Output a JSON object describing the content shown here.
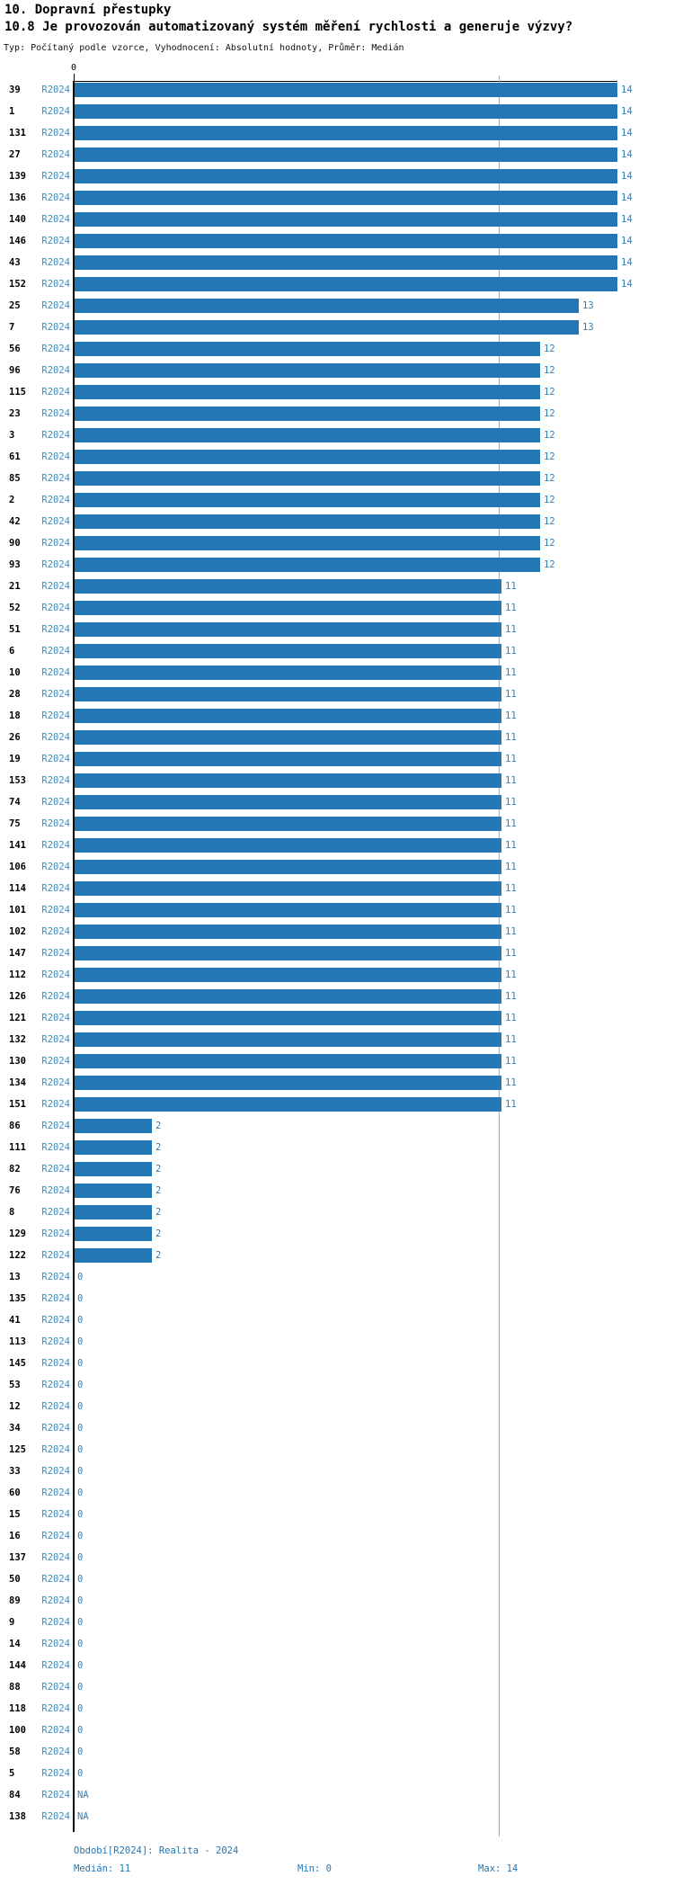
{
  "header": {
    "title": "10. Dopravní přestupky",
    "subtitle": "10.8 Je provozován automatizovaný systém měření rychlosti a generuje výzvy?",
    "meta": "Typ: Počítaný podle vzorce, Vyhodnocení: Absolutní hodnoty, Průměr: Medián"
  },
  "chart_data": {
    "type": "bar",
    "orientation": "horizontal",
    "title": "10.8 Je provozován automatizovaný systém měření rychlosti a generuje výzvy?",
    "series_label": "R2024",
    "axis_tick": "0",
    "xlim": [
      0,
      14
    ],
    "grid": false,
    "median_reference_line": 11,
    "stats": {
      "median": 11,
      "min": 0,
      "max": 14
    },
    "colors": {
      "bar": "#2377b4",
      "series_label": "#3a8bc2",
      "value_label": "#2e7fb8",
      "median_line": "#7fb2d8",
      "footer_text": "#2377b4"
    },
    "rows": [
      {
        "id": "39",
        "value": 14
      },
      {
        "id": "1",
        "value": 14
      },
      {
        "id": "131",
        "value": 14
      },
      {
        "id": "27",
        "value": 14
      },
      {
        "id": "139",
        "value": 14
      },
      {
        "id": "136",
        "value": 14
      },
      {
        "id": "140",
        "value": 14
      },
      {
        "id": "146",
        "value": 14
      },
      {
        "id": "43",
        "value": 14
      },
      {
        "id": "152",
        "value": 14
      },
      {
        "id": "25",
        "value": 13
      },
      {
        "id": "7",
        "value": 13
      },
      {
        "id": "56",
        "value": 12
      },
      {
        "id": "96",
        "value": 12
      },
      {
        "id": "115",
        "value": 12
      },
      {
        "id": "23",
        "value": 12
      },
      {
        "id": "3",
        "value": 12
      },
      {
        "id": "61",
        "value": 12
      },
      {
        "id": "85",
        "value": 12
      },
      {
        "id": "2",
        "value": 12
      },
      {
        "id": "42",
        "value": 12
      },
      {
        "id": "90",
        "value": 12
      },
      {
        "id": "93",
        "value": 12
      },
      {
        "id": "21",
        "value": 11
      },
      {
        "id": "52",
        "value": 11
      },
      {
        "id": "51",
        "value": 11
      },
      {
        "id": "6",
        "value": 11
      },
      {
        "id": "10",
        "value": 11
      },
      {
        "id": "28",
        "value": 11
      },
      {
        "id": "18",
        "value": 11
      },
      {
        "id": "26",
        "value": 11
      },
      {
        "id": "19",
        "value": 11
      },
      {
        "id": "153",
        "value": 11
      },
      {
        "id": "74",
        "value": 11
      },
      {
        "id": "75",
        "value": 11
      },
      {
        "id": "141",
        "value": 11
      },
      {
        "id": "106",
        "value": 11
      },
      {
        "id": "114",
        "value": 11
      },
      {
        "id": "101",
        "value": 11
      },
      {
        "id": "102",
        "value": 11
      },
      {
        "id": "147",
        "value": 11
      },
      {
        "id": "112",
        "value": 11
      },
      {
        "id": "126",
        "value": 11
      },
      {
        "id": "121",
        "value": 11
      },
      {
        "id": "132",
        "value": 11
      },
      {
        "id": "130",
        "value": 11
      },
      {
        "id": "134",
        "value": 11
      },
      {
        "id": "151",
        "value": 11
      },
      {
        "id": "86",
        "value": 2
      },
      {
        "id": "111",
        "value": 2
      },
      {
        "id": "82",
        "value": 2
      },
      {
        "id": "76",
        "value": 2
      },
      {
        "id": "8",
        "value": 2
      },
      {
        "id": "129",
        "value": 2
      },
      {
        "id": "122",
        "value": 2
      },
      {
        "id": "13",
        "value": 0
      },
      {
        "id": "135",
        "value": 0
      },
      {
        "id": "41",
        "value": 0
      },
      {
        "id": "113",
        "value": 0
      },
      {
        "id": "145",
        "value": 0
      },
      {
        "id": "53",
        "value": 0
      },
      {
        "id": "12",
        "value": 0
      },
      {
        "id": "34",
        "value": 0
      },
      {
        "id": "125",
        "value": 0
      },
      {
        "id": "33",
        "value": 0
      },
      {
        "id": "60",
        "value": 0
      },
      {
        "id": "15",
        "value": 0
      },
      {
        "id": "16",
        "value": 0
      },
      {
        "id": "137",
        "value": 0
      },
      {
        "id": "50",
        "value": 0
      },
      {
        "id": "89",
        "value": 0
      },
      {
        "id": "9",
        "value": 0
      },
      {
        "id": "14",
        "value": 0
      },
      {
        "id": "144",
        "value": 0
      },
      {
        "id": "88",
        "value": 0
      },
      {
        "id": "118",
        "value": 0
      },
      {
        "id": "100",
        "value": 0
      },
      {
        "id": "58",
        "value": 0
      },
      {
        "id": "5",
        "value": 0
      },
      {
        "id": "84",
        "value": "NA"
      },
      {
        "id": "138",
        "value": "NA"
      }
    ]
  },
  "footer": {
    "period": "Období[R2024]: Realita - 2024",
    "median": "Medián: 11",
    "min": "Min: 0",
    "max": "Max: 14"
  }
}
